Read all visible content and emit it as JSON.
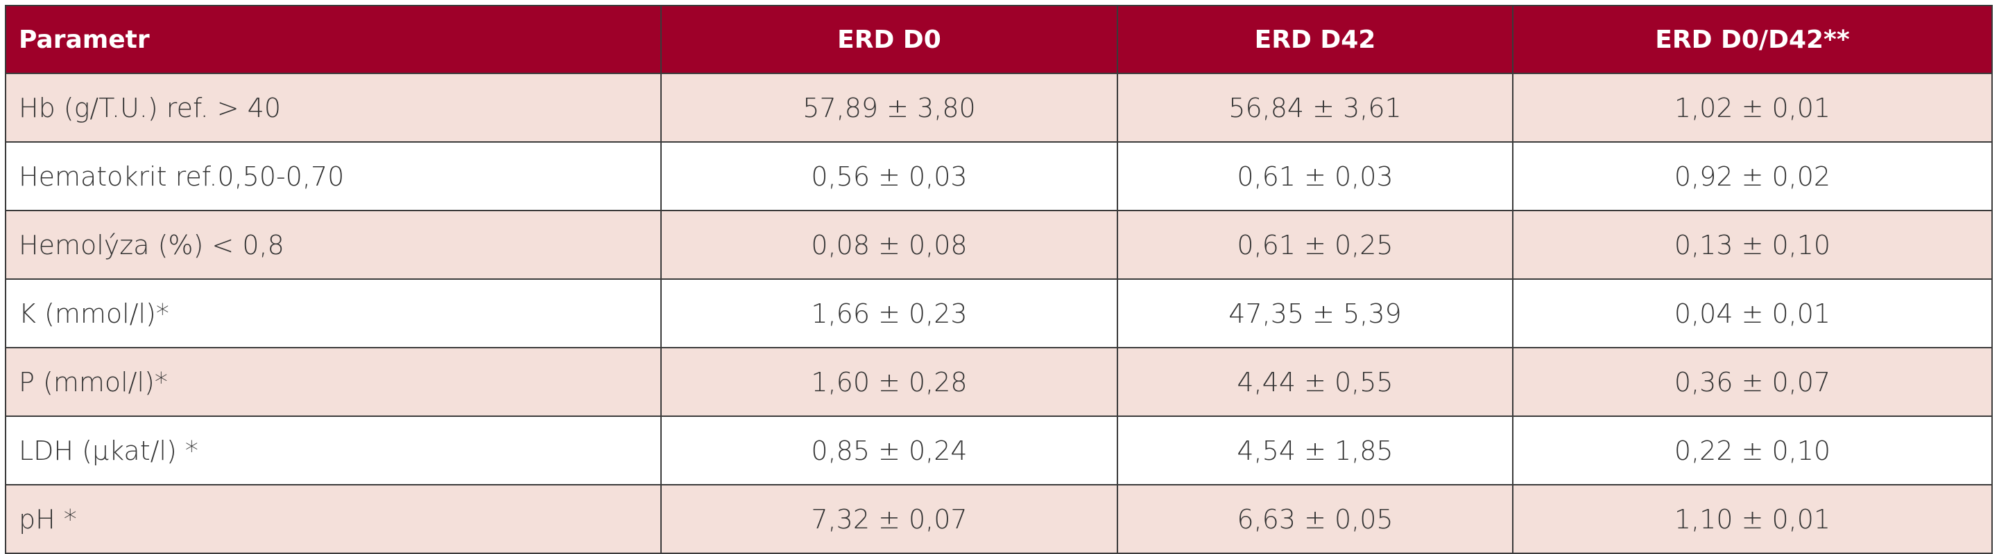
{
  "table": {
    "header": [
      "Parametr",
      "ERD D0",
      "ERD D42",
      "ERD D0/D42**"
    ],
    "rows": [
      [
        "Hb (g/T.U.) ref. > 40",
        "57,89 ± 3,80",
        "56,84 ± 3,61",
        "1,02 ± 0,01"
      ],
      [
        "Hematokrit ref.0,50-0,70",
        "0,56 ± 0,03",
        "0,61 ± 0,03",
        "0,92 ± 0,02"
      ],
      [
        "Hemolýza (%) < 0,8",
        "0,08 ± 0,08",
        "0,61 ± 0,25",
        "0,13 ± 0,10"
      ],
      [
        "K (mmol/l)*",
        "1,66 ± 0,23",
        "47,35 ± 5,39",
        "0,04 ± 0,01"
      ],
      [
        "P (mmol/l)*",
        "1,60 ± 0,28",
        "4,44 ± 0,55",
        "0,36 ± 0,07"
      ],
      [
        "LDH (μkat/l) *",
        "0,85 ± 0,24",
        "4,54 ± 1,85",
        "0,22 ± 0,10"
      ],
      [
        "pH *",
        "7,32 ± 0,07",
        "6,63 ± 0,05",
        "1,10 ± 0,01"
      ]
    ]
  }
}
